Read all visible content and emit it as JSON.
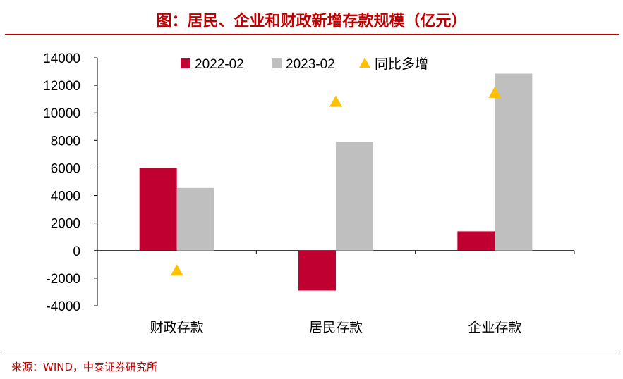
{
  "header": {
    "title": "图：居民、企业和财政新增存款规模（亿元）"
  },
  "footer": {
    "source": "来源：WIND，中泰证券研究所"
  },
  "colors": {
    "accent": "#C00000",
    "series_2022": "#C00030",
    "series_2023": "#BFBFBF",
    "yoy": "#FFC000"
  },
  "chart_data": {
    "type": "bar",
    "title": "图：居民、企业和财政新增存款规模（亿元）",
    "categories": [
      "财政存款",
      "居民存款",
      "企业存款"
    ],
    "series": [
      {
        "name": "2022-02",
        "type": "bar",
        "values": [
          6000,
          -2900,
          1400
        ]
      },
      {
        "name": "2023-02",
        "type": "bar",
        "values": [
          4550,
          7900,
          12850
        ]
      },
      {
        "name": "同比多增",
        "type": "scatter",
        "marker": "triangle",
        "values": [
          -1450,
          10800,
          11450
        ]
      }
    ],
    "ylim": [
      -4000,
      14000
    ],
    "yticks": [
      "14000",
      "12000",
      "10000",
      "8000",
      "6000",
      "4000",
      "2000",
      "0",
      "-2000",
      "-4000"
    ],
    "xlabel": "",
    "ylabel": "",
    "grid": false,
    "legend_position": "top"
  }
}
